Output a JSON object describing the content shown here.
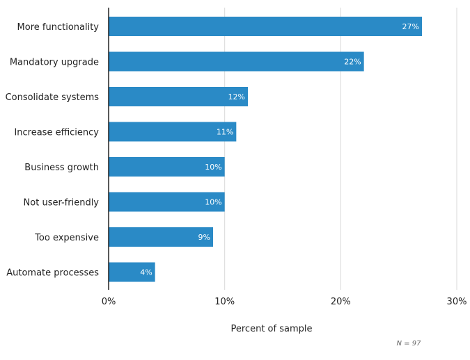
{
  "chart_data": {
    "type": "bar",
    "orientation": "horizontal",
    "title": "",
    "categories": [
      "More functionality",
      "Mandatory upgrade",
      "Consolidate systems",
      "Increase efficiency",
      "Business growth",
      "Not user-friendly",
      "Too expensive",
      "Automate processes"
    ],
    "values": [
      27,
      22,
      12,
      11,
      10,
      10,
      9,
      4
    ],
    "data_labels": [
      "27%",
      "22%",
      "12%",
      "11%",
      "10%",
      "10%",
      "9%",
      "4%"
    ],
    "xlabel": "Percent of sample",
    "ylabel": "",
    "xlim": [
      0,
      30
    ],
    "xticks": [
      0,
      10,
      20,
      30
    ],
    "xtick_labels": [
      "0%",
      "10%",
      "20%",
      "30%"
    ],
    "grid": "vertical",
    "bar_color": "#2a8ac6",
    "note": "N = 97"
  }
}
